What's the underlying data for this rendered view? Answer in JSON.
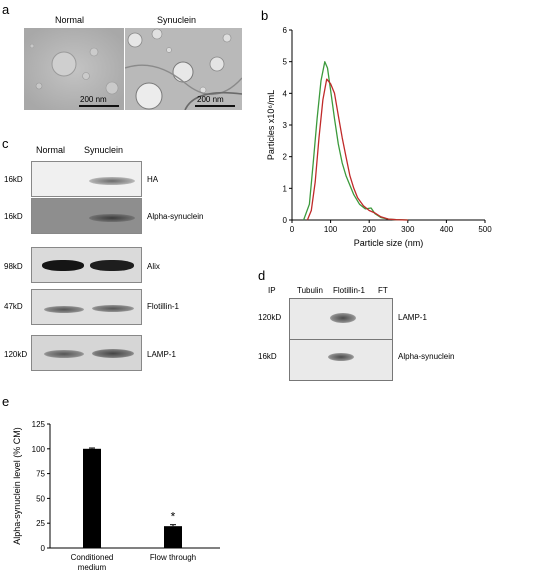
{
  "panel_a": {
    "label": "a",
    "headers": [
      "Normal",
      "Synuclein"
    ],
    "scale_bars": [
      "200 nm",
      "200 nm"
    ]
  },
  "panel_b": {
    "label": "b"
  },
  "panel_c": {
    "label": "c",
    "headers": [
      "Normal",
      "Synuclein"
    ],
    "rows": [
      {
        "mw": "16kD",
        "name": "HA"
      },
      {
        "mw": "16kD",
        "name": "Alpha-synuclein"
      },
      {
        "mw": "98kD",
        "name": "Alix"
      },
      {
        "mw": "47kD",
        "name": "Flotillin-1"
      },
      {
        "mw": "120kD",
        "name": "LAMP-1"
      }
    ]
  },
  "panel_d": {
    "label": "d",
    "ip_label": "IP",
    "headers": [
      "Tubulin",
      "Flotillin-1",
      "FT"
    ],
    "rows": [
      {
        "mw": "120kD",
        "name": "LAMP-1"
      },
      {
        "mw": "16kD",
        "name": "Alpha-synuclein"
      }
    ]
  },
  "panel_e": {
    "label": "e",
    "significance": "*"
  },
  "chart_data": [
    {
      "type": "line",
      "xlabel": "Particle size (nm)",
      "ylabel": "Particles x10⁶/mL",
      "xlim": [
        0,
        500
      ],
      "ylim": [
        0,
        6
      ],
      "xticks": [
        0,
        100,
        200,
        300,
        400,
        500
      ],
      "yticks": [
        0,
        1,
        2,
        3,
        4,
        5,
        6
      ],
      "series": [
        {
          "color": "#3c9a3c",
          "x": [
            30,
            45,
            55,
            65,
            75,
            85,
            92,
            100,
            110,
            120,
            130,
            140,
            150,
            160,
            175,
            190,
            205,
            215,
            230,
            250,
            270,
            300
          ],
          "y": [
            0,
            0.5,
            1.8,
            3.2,
            4.4,
            5.0,
            4.8,
            4.1,
            3.2,
            2.4,
            1.8,
            1.4,
            1.1,
            0.8,
            0.5,
            0.35,
            0.38,
            0.2,
            0.08,
            0.03,
            0.01,
            0
          ]
        },
        {
          "color": "#c02a2a",
          "x": [
            40,
            50,
            60,
            70,
            80,
            90,
            100,
            110,
            120,
            130,
            140,
            150,
            160,
            170,
            185,
            200,
            215,
            230,
            250,
            270,
            300
          ],
          "y": [
            0,
            0.3,
            1.2,
            2.6,
            3.8,
            4.45,
            4.3,
            4.0,
            3.3,
            2.6,
            2.0,
            1.4,
            1.0,
            0.7,
            0.45,
            0.3,
            0.22,
            0.1,
            0.03,
            0.01,
            0
          ]
        }
      ]
    },
    {
      "type": "bar",
      "ylabel": "Alpha-synuclein level (% CM)",
      "categories": [
        "Conditioned medium",
        "Flow through"
      ],
      "values": [
        100,
        22
      ],
      "errors": [
        0.8,
        1.5
      ],
      "ylim": [
        0,
        125
      ],
      "yticks": [
        0,
        25,
        50,
        75,
        100,
        125
      ]
    }
  ]
}
